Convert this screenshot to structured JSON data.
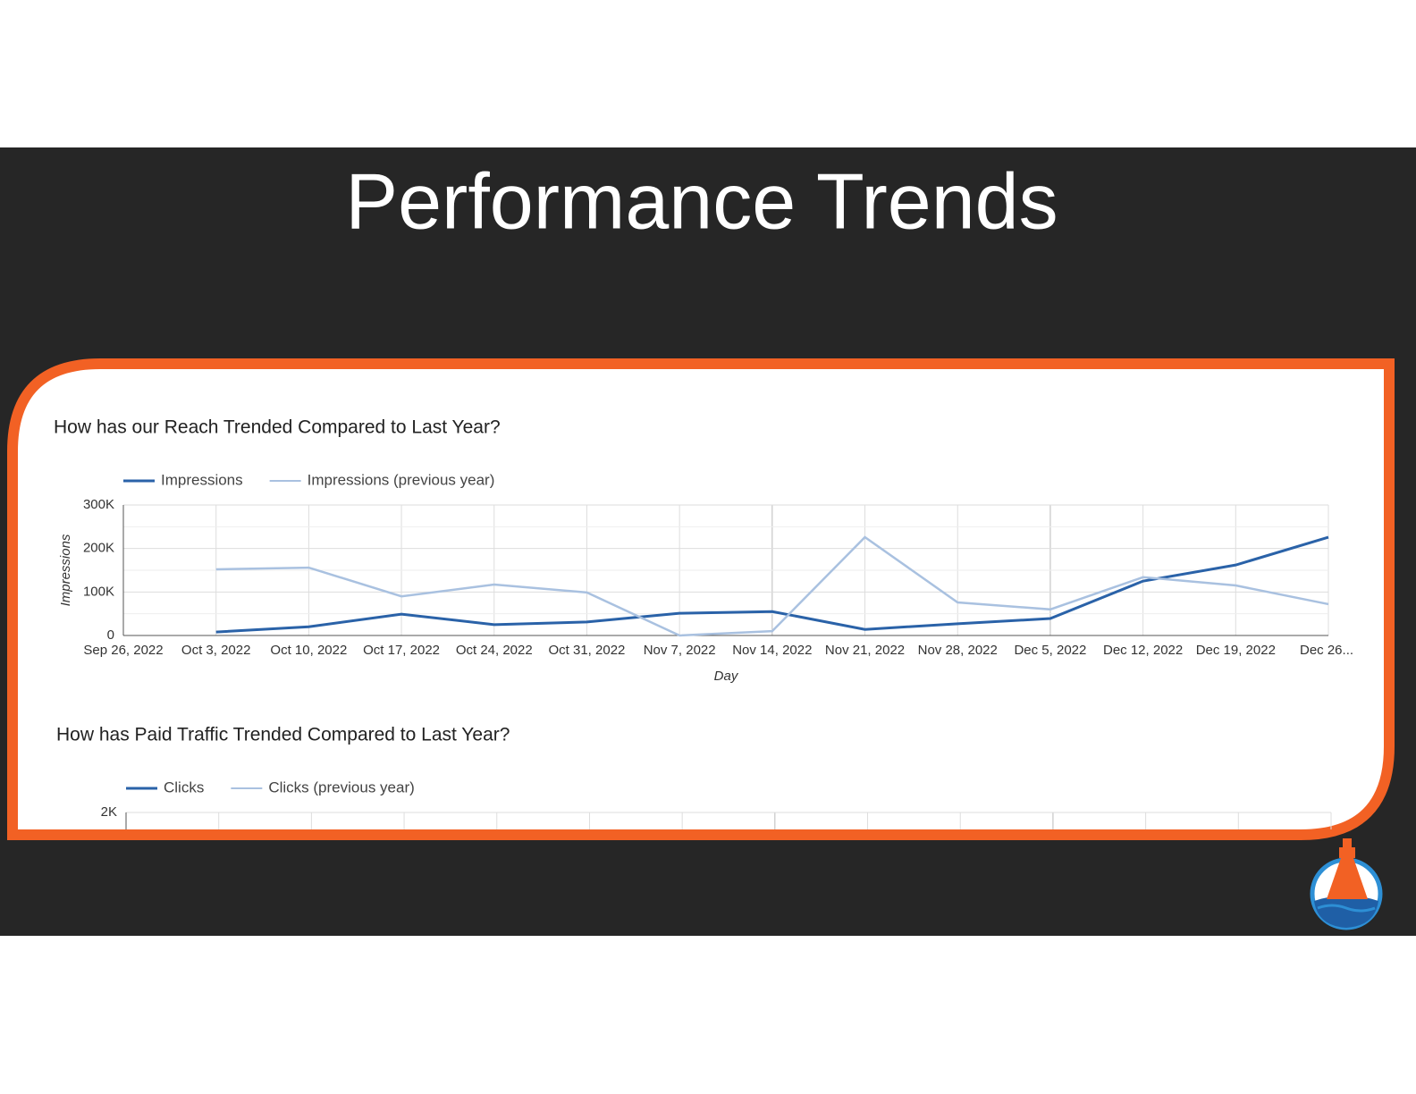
{
  "title": "Performance Trends",
  "chart_data": [
    {
      "type": "line",
      "title": "How has our Reach Trended Compared to Last Year?",
      "x_label": "Day",
      "y_label": "Impressions",
      "categories": [
        "Sep 26, 2022",
        "Oct 3, 2022",
        "Oct 10, 2022",
        "Oct 17, 2022",
        "Oct 24, 2022",
        "Oct 31, 2022",
        "Nov 7, 2022",
        "Nov 14, 2022",
        "Nov 21, 2022",
        "Nov 28, 2022",
        "Dec 5, 2022",
        "Dec 12, 2022",
        "Dec 19, 2022",
        "Dec 26..."
      ],
      "series": [
        {
          "name": "Impressions",
          "color": "#2a62a8",
          "values": [
            null,
            8000,
            20000,
            49000,
            25000,
            31000,
            51000,
            55000,
            14000,
            27000,
            39000,
            125000,
            162000,
            226000
          ]
        },
        {
          "name": "Impressions (previous year)",
          "color": "#a9c1e0",
          "values": [
            null,
            152000,
            156000,
            90000,
            117000,
            99000,
            0,
            10000,
            226000,
            76000,
            60000,
            134000,
            115000,
            72000
          ]
        }
      ],
      "ylim": [
        0,
        300000
      ],
      "yticks": [
        0,
        {
          "value": 100000,
          "label": "100K"
        },
        {
          "value": 200000,
          "label": "200K"
        },
        {
          "value": 300000,
          "label": "300K"
        }
      ],
      "grid": true
    },
    {
      "type": "line",
      "title": "How has Paid Traffic Trended Compared to Last Year?",
      "series": [
        {
          "name": "Clicks",
          "color": "#2a62a8"
        },
        {
          "name": "Clicks (previous year)",
          "color": "#a9c1e0"
        }
      ],
      "yticks": [
        {
          "value": 2000,
          "label": "2K"
        }
      ],
      "grid": true
    }
  ]
}
